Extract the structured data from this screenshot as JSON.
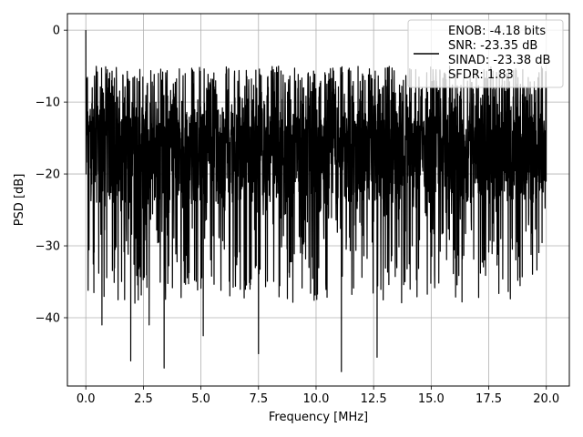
{
  "chart_data": {
    "type": "line",
    "title": "",
    "xlabel": "Frequency [MHz]",
    "ylabel": "PSD [dB]",
    "xlim": [
      -0.8,
      21.0
    ],
    "ylim": [
      -49.5,
      2.3
    ],
    "xticks": [
      0,
      2.5,
      5,
      7.5,
      10,
      12.5,
      15,
      17.5,
      20
    ],
    "xtick_labels": [
      "0.0",
      "2.5",
      "5.0",
      "7.5",
      "10.0",
      "12.5",
      "15.0",
      "17.5",
      "20.0"
    ],
    "yticks": [
      0,
      -10,
      -20,
      -30,
      -40
    ],
    "ytick_labels": [
      "0",
      "−10",
      "−20",
      "−30",
      "−40"
    ],
    "grid": true,
    "legend_position": "top-right",
    "series": [
      {
        "name": "ENOB: -4.18 bits\nSNR: -23.35 dB\nSINAD: -23.38 dB\nSFDR: 1.83",
        "color": "#000000",
        "x_range": [
          0,
          20
        ],
        "approx_mean": -18,
        "approx_spread": [
          -47,
          -5
        ],
        "peak": {
          "x": 0.0,
          "y": 0.0
        },
        "notable_dips": [
          {
            "x": 0.35,
            "y": -36.5
          },
          {
            "x": 0.7,
            "y": -41
          },
          {
            "x": 1.4,
            "y": -37.5
          },
          {
            "x": 1.95,
            "y": -46
          },
          {
            "x": 2.75,
            "y": -41
          },
          {
            "x": 3.4,
            "y": -47
          },
          {
            "x": 5.1,
            "y": -42.5
          },
          {
            "x": 7.5,
            "y": -45
          },
          {
            "x": 11.1,
            "y": -47.5
          },
          {
            "x": 12.65,
            "y": -45.5
          }
        ]
      }
    ]
  },
  "legend": {
    "lines": [
      "ENOB: -4.18 bits",
      "SNR: -23.35 dB",
      "SINAD: -23.38 dB",
      "SFDR: 1.83"
    ]
  }
}
